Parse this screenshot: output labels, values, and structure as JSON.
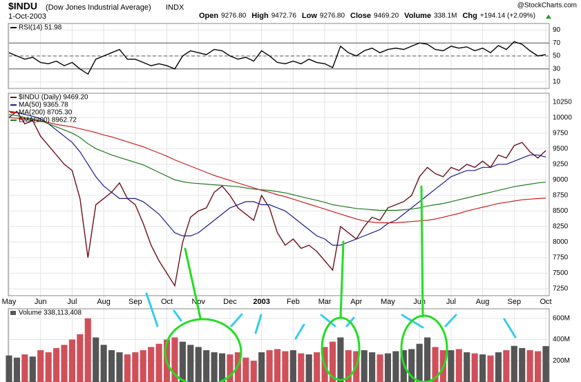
{
  "header": {
    "symbol": "$INDU",
    "name": "(Dow Jones Industrial Average)",
    "exchange": "INDX",
    "date": "1-Oct-2003",
    "quote": [
      {
        "label": "Open",
        "value": "9276.80"
      },
      {
        "label": "High",
        "value": "9472.76"
      },
      {
        "label": "Low",
        "value": "9276.80"
      },
      {
        "label": "Close",
        "value": "9469.20"
      },
      {
        "label": "Volume",
        "value": "338.1M"
      },
      {
        "label": "Chg",
        "value": "+194.14 (+2.09%)"
      }
    ],
    "credit": "@StockCharts.com"
  },
  "chart_data": [
    {
      "type": "line",
      "ylim": [
        0,
        100
      ],
      "yticks": [
        10,
        30,
        50,
        70,
        90
      ],
      "levels": [
        30,
        50,
        70
      ],
      "series": [
        {
          "name": "RSI(14) 51.98",
          "color": "#000000",
          "values": [
            55,
            50,
            45,
            48,
            40,
            38,
            42,
            35,
            40,
            30,
            22,
            45,
            50,
            55,
            60,
            45,
            45,
            40,
            35,
            38,
            35,
            30,
            50,
            58,
            55,
            52,
            60,
            58,
            50,
            45,
            48,
            42,
            58,
            50,
            40,
            38,
            42,
            38,
            45,
            40,
            38,
            32,
            65,
            55,
            50,
            58,
            62,
            55,
            60,
            62,
            60,
            65,
            70,
            68,
            60,
            58,
            65,
            62,
            64,
            58,
            62,
            55,
            66,
            60,
            72,
            68,
            58,
            50,
            51.98
          ]
        }
      ]
    },
    {
      "type": "line",
      "ylim": [
        7140,
        10390
      ],
      "yticks": [
        7250,
        7500,
        7750,
        8000,
        8250,
        8500,
        8750,
        9000,
        9250,
        9500,
        9750,
        10000,
        10250
      ],
      "xlim": [
        0,
        68
      ],
      "xticks": [
        {
          "value": 0,
          "label": "May"
        },
        {
          "value": 4,
          "label": "Jun"
        },
        {
          "value": 8,
          "label": "Jul"
        },
        {
          "value": 12,
          "label": "Aug"
        },
        {
          "value": 16,
          "label": "Sep"
        },
        {
          "value": 20,
          "label": "Oct"
        },
        {
          "value": 24,
          "label": "Nov"
        },
        {
          "value": 28,
          "label": "Dec"
        },
        {
          "value": 32,
          "label": "2003"
        },
        {
          "value": 36,
          "label": "Feb"
        },
        {
          "value": 40,
          "label": "Mar"
        },
        {
          "value": 44,
          "label": "Apr"
        },
        {
          "value": 48,
          "label": "May"
        },
        {
          "value": 52,
          "label": "Jun"
        },
        {
          "value": 56,
          "label": "Jul"
        },
        {
          "value": 60,
          "label": "Aug"
        },
        {
          "value": 64,
          "label": "Sep"
        },
        {
          "value": 68,
          "label": "Oct"
        }
      ],
      "series": [
        {
          "name": "$INDU (Daily) 9469.20",
          "color": "#6b0f1a",
          "values": [
            10000,
            10100,
            9900,
            9950,
            9700,
            9550,
            9400,
            9250,
            9150,
            8700,
            7750,
            8600,
            8700,
            8800,
            8950,
            8700,
            8600,
            8300,
            7950,
            7700,
            7500,
            7300,
            8000,
            8400,
            8500,
            8550,
            8800,
            8900,
            8750,
            8550,
            8450,
            8350,
            8750,
            8550,
            8150,
            7950,
            8050,
            7900,
            7950,
            7850,
            7700,
            7550,
            8250,
            8150,
            8050,
            8250,
            8400,
            8350,
            8550,
            8600,
            8650,
            8750,
            9050,
            9200,
            9100,
            9050,
            9200,
            9150,
            9250,
            9200,
            9300,
            9200,
            9400,
            9350,
            9550,
            9600,
            9450,
            9350,
            9469.2
          ]
        },
        {
          "name": "MA(50) 9365.78",
          "color": "#1a1a8c",
          "values": [
            10100,
            10080,
            10050,
            10020,
            9980,
            9900,
            9800,
            9700,
            9600,
            9450,
            9250,
            9050,
            8900,
            8800,
            8700,
            8700,
            8700,
            8650,
            8550,
            8450,
            8300,
            8150,
            8100,
            8100,
            8150,
            8250,
            8350,
            8450,
            8550,
            8600,
            8650,
            8650,
            8600,
            8600,
            8550,
            8500,
            8400,
            8300,
            8200,
            8100,
            8050,
            7950,
            7950,
            8000,
            8050,
            8100,
            8150,
            8200,
            8300,
            8350,
            8450,
            8550,
            8650,
            8750,
            8850,
            8950,
            9050,
            9100,
            9150,
            9150,
            9200,
            9200,
            9250,
            9250,
            9300,
            9350,
            9400,
            9400,
            9365.78
          ]
        },
        {
          "name": "MA(200) 8705.30",
          "color": "#c81e1e",
          "values": [
            10000,
            9990,
            9980,
            9960,
            9940,
            9920,
            9890,
            9870,
            9850,
            9820,
            9790,
            9760,
            9720,
            9690,
            9650,
            9610,
            9570,
            9530,
            9480,
            9430,
            9380,
            9320,
            9270,
            9220,
            9170,
            9120,
            9070,
            9030,
            8990,
            8950,
            8910,
            8870,
            8830,
            8800,
            8760,
            8730,
            8690,
            8650,
            8610,
            8570,
            8530,
            8490,
            8450,
            8410,
            8370,
            8340,
            8320,
            8310,
            8310,
            8310,
            8320,
            8330,
            8340,
            8350,
            8370,
            8400,
            8430,
            8460,
            8500,
            8530,
            8560,
            8590,
            8620,
            8640,
            8660,
            8680,
            8690,
            8700,
            8705.3
          ]
        },
        {
          "name": "EMA(200) 8962.72",
          "color": "#1e7a1e",
          "values": [
            10050,
            10030,
            10000,
            9980,
            9950,
            9900,
            9850,
            9800,
            9750,
            9680,
            9580,
            9500,
            9450,
            9400,
            9360,
            9320,
            9280,
            9240,
            9180,
            9120,
            9060,
            9000,
            8970,
            8950,
            8940,
            8930,
            8920,
            8910,
            8900,
            8890,
            8870,
            8850,
            8840,
            8830,
            8810,
            8790,
            8760,
            8730,
            8700,
            8670,
            8640,
            8600,
            8580,
            8560,
            8540,
            8530,
            8520,
            8510,
            8510,
            8510,
            8520,
            8530,
            8550,
            8580,
            8600,
            8620,
            8650,
            8680,
            8710,
            8740,
            8770,
            8800,
            8830,
            8860,
            8890,
            8910,
            8930,
            8950,
            8962.72
          ]
        }
      ]
    },
    {
      "type": "bar",
      "ylim": [
        0,
        690000000
      ],
      "yticks": [
        {
          "value": 200000000,
          "label": "200M"
        },
        {
          "value": 400000000,
          "label": "400M"
        },
        {
          "value": 600000000,
          "label": "600M"
        }
      ],
      "up_color": "#555555",
      "down_color": "#d0505a",
      "series": [
        {
          "name": "Volume 338,113,408",
          "values": [
            250000000,
            230000000,
            260000000,
            240000000,
            300000000,
            280000000,
            320000000,
            350000000,
            400000000,
            450000000,
            600000000,
            420000000,
            350000000,
            300000000,
            280000000,
            260000000,
            280000000,
            300000000,
            330000000,
            360000000,
            400000000,
            420000000,
            380000000,
            350000000,
            330000000,
            300000000,
            280000000,
            270000000,
            260000000,
            280000000,
            230000000,
            200000000,
            280000000,
            300000000,
            310000000,
            290000000,
            300000000,
            270000000,
            260000000,
            280000000,
            330000000,
            380000000,
            420000000,
            300000000,
            290000000,
            300000000,
            280000000,
            260000000,
            270000000,
            290000000,
            300000000,
            310000000,
            360000000,
            420000000,
            330000000,
            300000000,
            300000000,
            310000000,
            280000000,
            270000000,
            260000000,
            250000000,
            280000000,
            300000000,
            340000000,
            320000000,
            300000000,
            290000000,
            338113408
          ]
        }
      ]
    }
  ]
}
